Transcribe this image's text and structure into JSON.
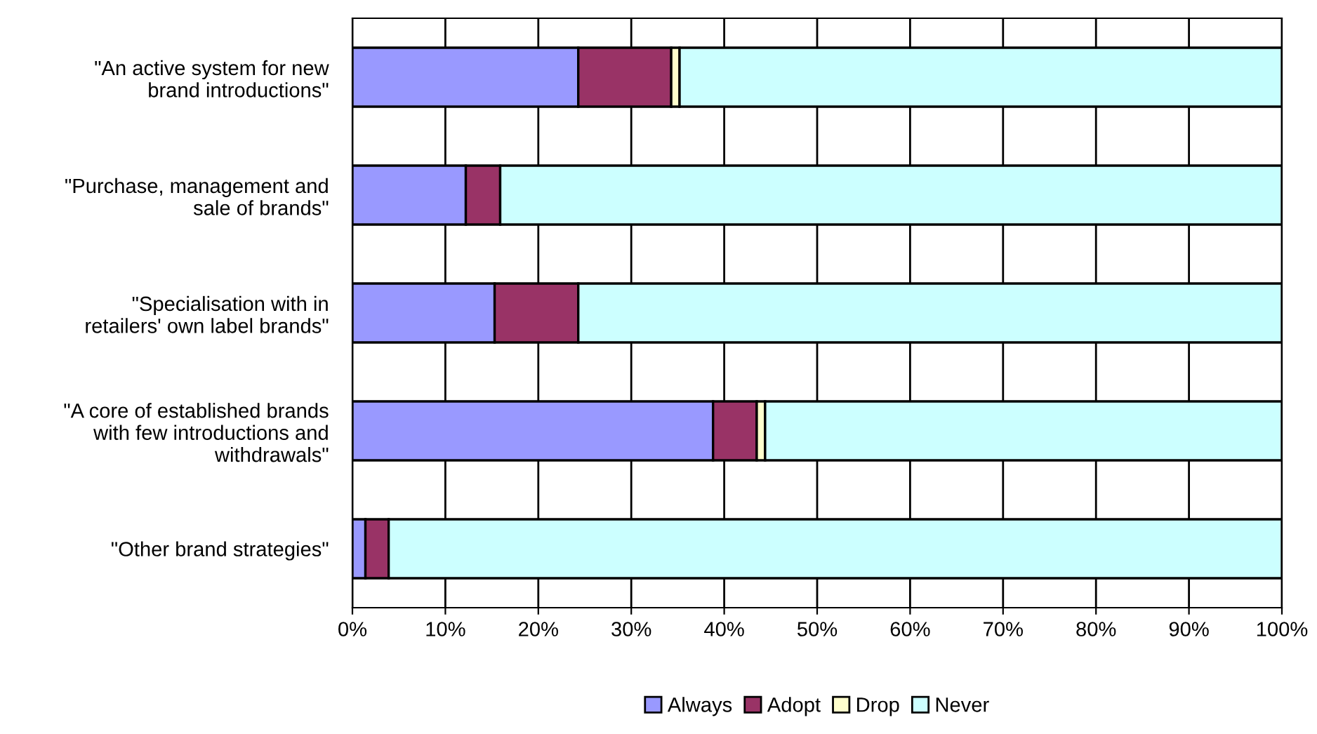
{
  "chart_data": {
    "type": "bar",
    "orientation": "horizontal",
    "stacked": true,
    "categories": [
      "\"An active system for new\nbrand introductions\"",
      "\"Purchase, management and\nsale of brands\"",
      "\"Specialisation with in\nretailers' own label brands\"",
      "\"A core of established brands\nwith few introductions and\nwithdrawals\"",
      "\"Other brand strategies\""
    ],
    "series": [
      {
        "name": "Always",
        "color": "#9999ff",
        "values": [
          24.3,
          12.2,
          15.3,
          38.8,
          1.4
        ]
      },
      {
        "name": "Adopt",
        "color": "#993366",
        "values": [
          10.0,
          3.7,
          9.0,
          4.7,
          2.5
        ]
      },
      {
        "name": "Drop",
        "color": "#ffffcc",
        "values": [
          0.9,
          null,
          null,
          0.9,
          null
        ]
      },
      {
        "name": "Never",
        "color": "#ccffff",
        "values": [
          64.8,
          84.1,
          75.7,
          55.6,
          96.1
        ]
      }
    ],
    "xlim": [
      0,
      100
    ],
    "xticks": [
      {
        "value": 0,
        "label": "0%"
      },
      {
        "value": 10,
        "label": "10%"
      },
      {
        "value": 20,
        "label": "20%"
      },
      {
        "value": 30,
        "label": "30%"
      },
      {
        "value": 40,
        "label": "40%"
      },
      {
        "value": 50,
        "label": "50%"
      },
      {
        "value": 60,
        "label": "60%"
      },
      {
        "value": 70,
        "label": "70%"
      },
      {
        "value": 80,
        "label": "80%"
      },
      {
        "value": 90,
        "label": "90%"
      },
      {
        "value": 100,
        "label": "100%"
      }
    ],
    "grid": "x",
    "legend": "bottom"
  }
}
